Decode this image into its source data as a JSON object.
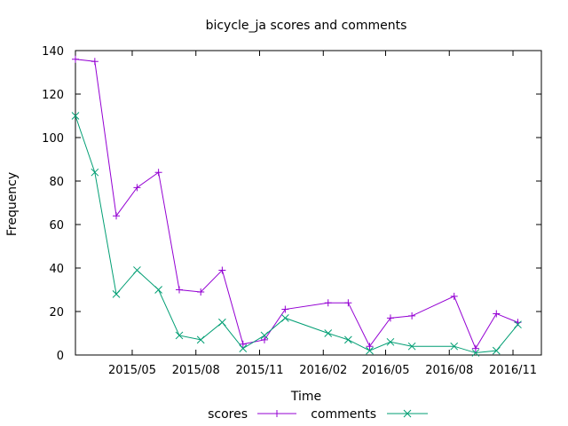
{
  "chart_data": {
    "type": "line",
    "title": "bicycle_ja scores and comments",
    "xlabel": "Time",
    "ylabel": "Frequency",
    "ylim": [
      0,
      140
    ],
    "xlim": [
      "2015-02-08",
      "2016-12-12"
    ],
    "yticks": [
      "0",
      "20",
      "40",
      "60",
      "80",
      "100",
      "120",
      "140"
    ],
    "xticks": [
      {
        "label": "2015/05",
        "date": "2015-05-01"
      },
      {
        "label": "2015/08",
        "date": "2015-08-01"
      },
      {
        "label": "2015/11",
        "date": "2015-11-01"
      },
      {
        "label": "2016/02",
        "date": "2016-02-01"
      },
      {
        "label": "2016/05",
        "date": "2016-05-01"
      },
      {
        "label": "2016/08",
        "date": "2016-08-01"
      },
      {
        "label": "2016/11",
        "date": "2016-11-01"
      }
    ],
    "legend_position": "bottom-center",
    "grid": false,
    "series": [
      {
        "name": "scores",
        "color": "#9400d3",
        "marker": "plus",
        "points": [
          [
            "2015-02-08",
            136
          ],
          [
            "2015-03-08",
            135
          ],
          [
            "2015-04-08",
            64
          ],
          [
            "2015-05-08",
            77
          ],
          [
            "2015-06-08",
            84
          ],
          [
            "2015-07-08",
            30
          ],
          [
            "2015-08-08",
            29
          ],
          [
            "2015-09-08",
            39
          ],
          [
            "2015-10-08",
            5
          ],
          [
            "2015-11-08",
            7
          ],
          [
            "2015-12-08",
            21
          ],
          [
            "2016-02-08",
            24
          ],
          [
            "2016-03-08",
            24
          ],
          [
            "2016-04-08",
            4
          ],
          [
            "2016-05-08",
            17
          ],
          [
            "2016-06-08",
            18
          ],
          [
            "2016-08-08",
            27
          ],
          [
            "2016-09-08",
            3
          ],
          [
            "2016-10-08",
            19
          ],
          [
            "2016-11-08",
            15
          ]
        ]
      },
      {
        "name": "comments",
        "color": "#009e73",
        "marker": "cross",
        "points": [
          [
            "2015-02-08",
            110
          ],
          [
            "2015-03-08",
            84
          ],
          [
            "2015-04-08",
            28
          ],
          [
            "2015-05-08",
            39
          ],
          [
            "2015-06-08",
            30
          ],
          [
            "2015-07-08",
            9
          ],
          [
            "2015-08-08",
            7
          ],
          [
            "2015-09-08",
            15
          ],
          [
            "2015-10-08",
            3
          ],
          [
            "2015-11-08",
            9
          ],
          [
            "2015-12-08",
            17
          ],
          [
            "2016-02-08",
            10
          ],
          [
            "2016-03-08",
            7
          ],
          [
            "2016-04-08",
            2
          ],
          [
            "2016-05-08",
            6
          ],
          [
            "2016-06-08",
            4
          ],
          [
            "2016-08-08",
            4
          ],
          [
            "2016-09-08",
            1
          ],
          [
            "2016-10-08",
            2
          ],
          [
            "2016-11-08",
            14
          ]
        ]
      }
    ]
  }
}
